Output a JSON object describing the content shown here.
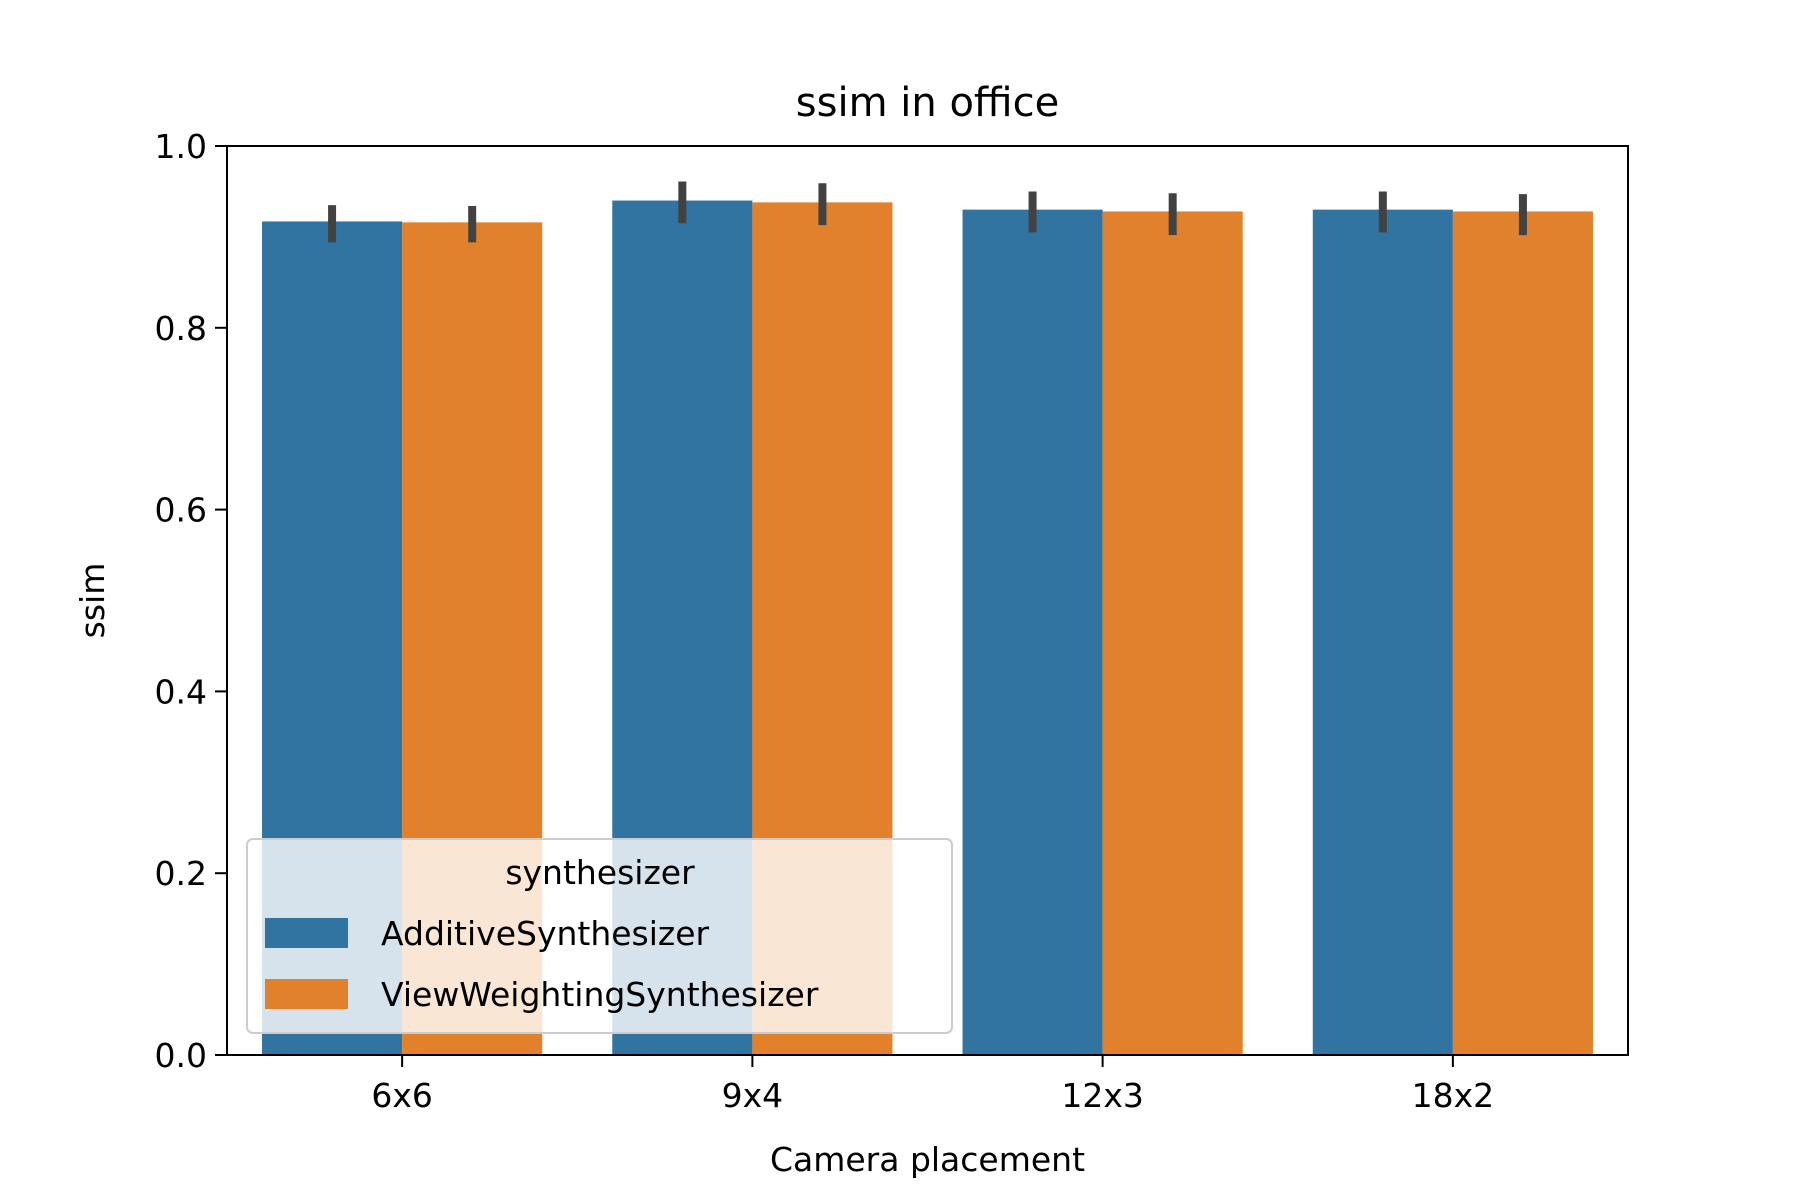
{
  "chart_data": {
    "type": "bar",
    "title": "ssim in office",
    "xlabel": "Camera placement",
    "ylabel": "ssim",
    "categories": [
      "6x6",
      "9x4",
      "12x3",
      "18x2"
    ],
    "ylim": [
      0.0,
      1.0
    ],
    "yticks": [
      "0.0",
      "0.2",
      "0.4",
      "0.6",
      "0.8",
      "1.0"
    ],
    "grid": false,
    "legend": {
      "title": "synthesizer",
      "placement": "lower-left"
    },
    "series": [
      {
        "name": "AdditiveSynthesizer",
        "color": "#3274a1",
        "values": [
          0.917,
          0.94,
          0.93,
          0.93
        ],
        "error_low": [
          0.894,
          0.915,
          0.905,
          0.905
        ],
        "error_high": [
          0.935,
          0.961,
          0.95,
          0.95
        ]
      },
      {
        "name": "ViewWeightingSynthesizer",
        "color": "#e1812c",
        "values": [
          0.916,
          0.938,
          0.928,
          0.928
        ],
        "error_low": [
          0.894,
          0.913,
          0.902,
          0.902
        ],
        "error_high": [
          0.934,
          0.959,
          0.948,
          0.947
        ]
      }
    ],
    "errorbar_color": "#424242"
  }
}
